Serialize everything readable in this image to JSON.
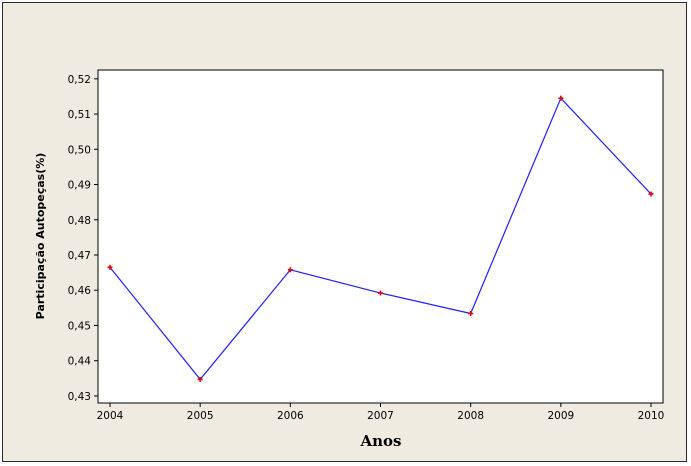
{
  "chart_data": {
    "type": "line",
    "title": "",
    "xlabel": "Anos",
    "ylabel": "Participação Autopeças(%)",
    "x": [
      "2004",
      "2005",
      "2006",
      "2007",
      "2008",
      "2009",
      "2010"
    ],
    "series": [
      {
        "values": [
          0.4665,
          0.4347,
          0.4658,
          0.4592,
          0.4534,
          0.5145,
          0.4873
        ]
      }
    ],
    "yticks": [
      "0,43",
      "0,44",
      "0,45",
      "0,46",
      "0,47",
      "0,48",
      "0,49",
      "0,50",
      "0,51",
      "0,52"
    ],
    "ylim": [
      0.428,
      0.5225
    ],
    "grid": false,
    "colors": {
      "line": "#1f1fff",
      "marker": "#e00000",
      "background": "#efebe1",
      "plot": "#ffffff"
    }
  }
}
